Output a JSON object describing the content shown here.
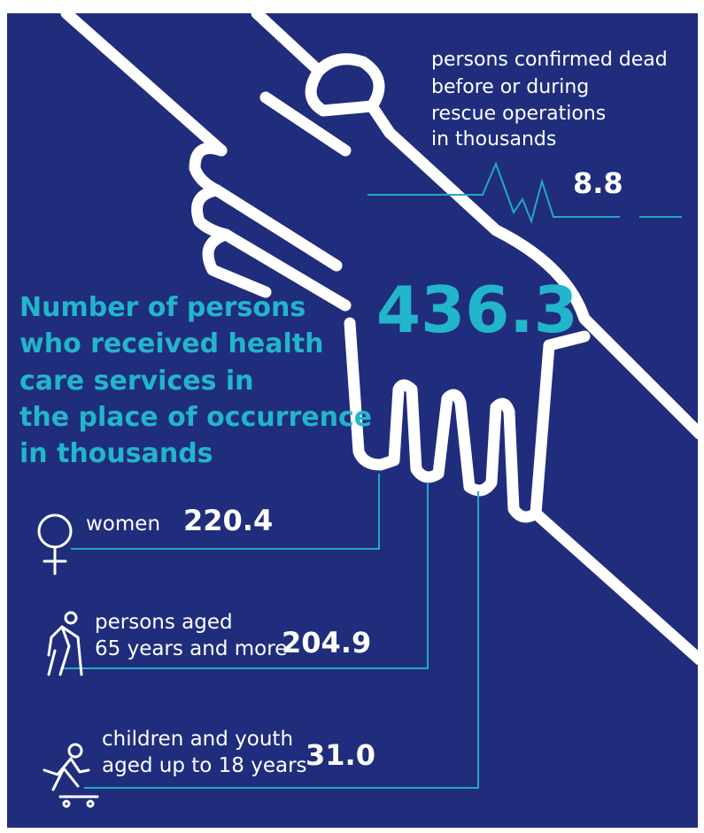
{
  "deaths": {
    "label": [
      "persons confirmed dead",
      "before or during",
      "rescue operations",
      "in thousands"
    ],
    "value": "8.8"
  },
  "total": {
    "value": "436.3",
    "label": [
      "Number of persons",
      "who received health",
      "care services in",
      "the place of occurrence",
      "in thousands"
    ]
  },
  "groups": [
    {
      "label": [
        "women"
      ],
      "value": "220.4"
    },
    {
      "label": [
        "persons aged",
        "65 years and more"
      ],
      "value": "204.9"
    },
    {
      "label": [
        "children and youth",
        "aged up to 18 years"
      ],
      "value": "31.0"
    }
  ]
}
